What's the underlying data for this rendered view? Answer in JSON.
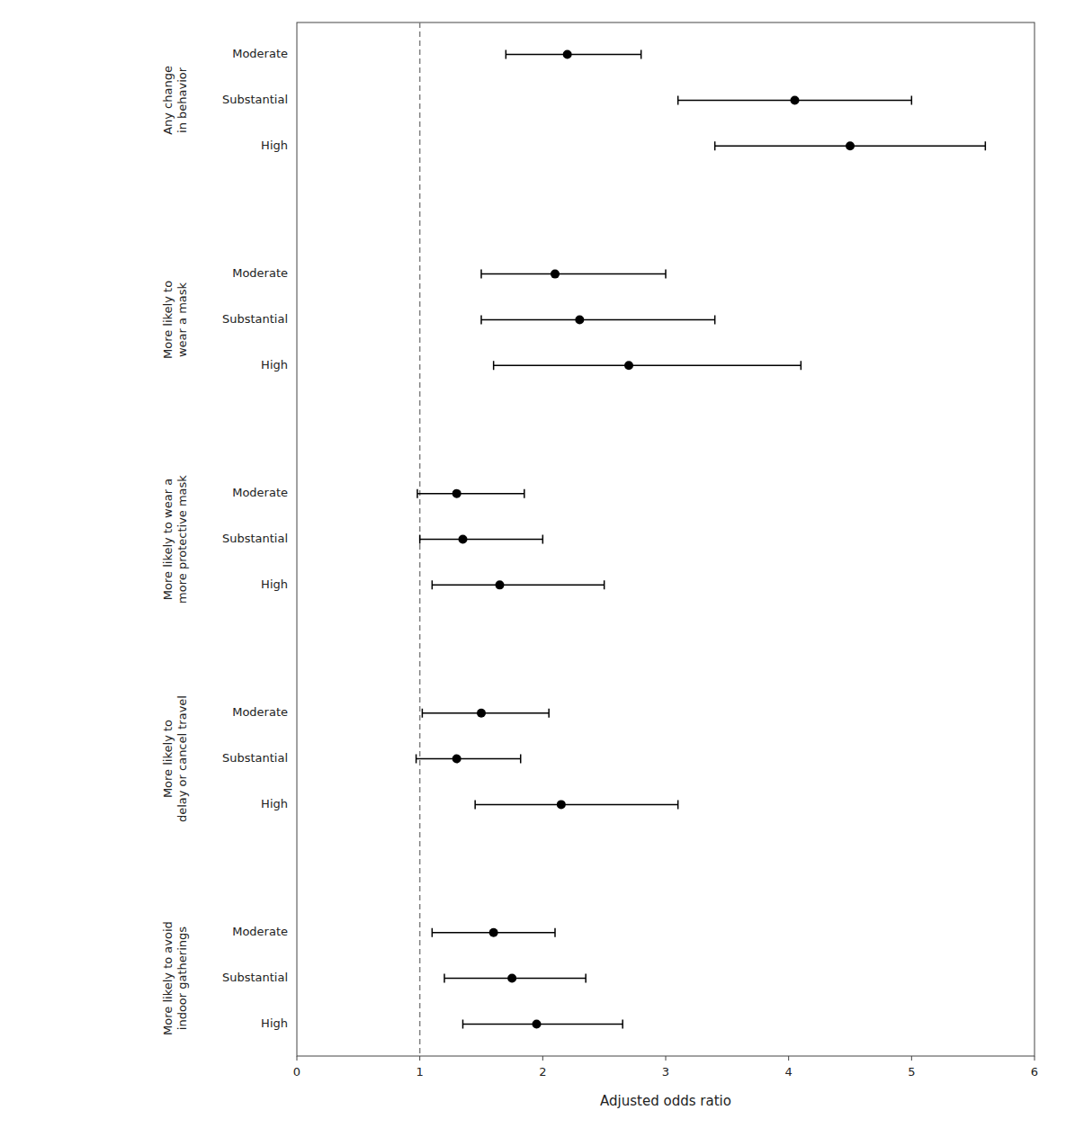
{
  "chart_data": {
    "type": "forest",
    "xlabel": "Adjusted odds ratio",
    "xlim": [
      0.0,
      6.0
    ],
    "xticks": [
      0,
      1,
      2,
      3,
      4,
      5,
      6
    ],
    "ref_line": 1.0,
    "color": "black",
    "grid": false,
    "groups": [
      {
        "label": "Any change\nin behavior",
        "categories": [
          "Moderate",
          "Substantial",
          "High"
        ],
        "values": [
          2.2,
          4.05,
          4.5
        ],
        "ci_lo": [
          1.7,
          3.1,
          3.4
        ],
        "ci_hi": [
          2.8,
          5.0,
          5.6
        ]
      },
      {
        "label": "More likely to\nwear a mask",
        "categories": [
          "Moderate",
          "Substantial",
          "High"
        ],
        "values": [
          2.1,
          2.3,
          2.7
        ],
        "ci_lo": [
          1.5,
          1.5,
          1.6
        ],
        "ci_hi": [
          3.0,
          3.4,
          4.1
        ]
      },
      {
        "label": "More likely to wear a\nmore protective mask",
        "categories": [
          "Moderate",
          "Substantial",
          "High"
        ],
        "values": [
          1.3,
          1.35,
          1.65
        ],
        "ci_lo": [
          0.98,
          1.0,
          1.1
        ],
        "ci_hi": [
          1.85,
          2.0,
          2.5
        ]
      },
      {
        "label": "More likely to\ndelay or cancel travel",
        "categories": [
          "Moderate",
          "Substantial",
          "High"
        ],
        "values": [
          1.5,
          1.3,
          2.15
        ],
        "ci_lo": [
          1.02,
          0.97,
          1.45
        ],
        "ci_hi": [
          2.05,
          1.82,
          3.1
        ]
      },
      {
        "label": "More likely to avoid\nindoor gatherings",
        "categories": [
          "Moderate",
          "Substantial",
          "High"
        ],
        "values": [
          1.6,
          1.75,
          1.95
        ],
        "ci_lo": [
          1.1,
          1.2,
          1.35
        ],
        "ci_hi": [
          2.1,
          2.35,
          2.65
        ]
      }
    ]
  }
}
